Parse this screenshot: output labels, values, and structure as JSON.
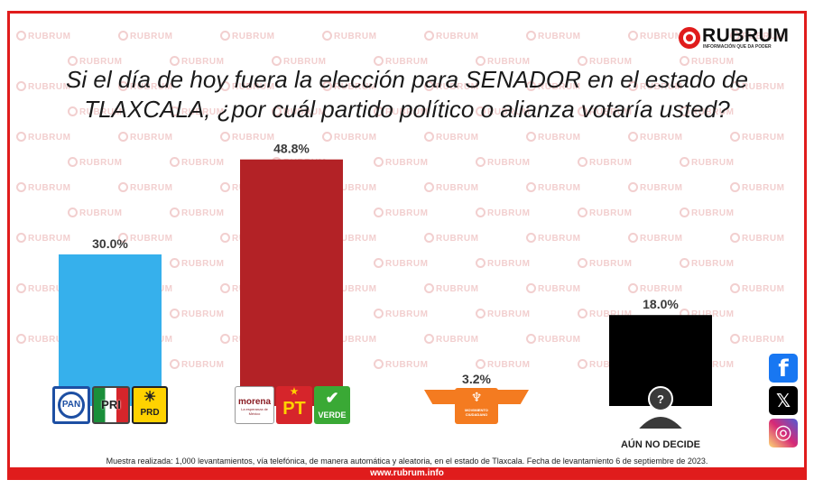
{
  "brand": {
    "name": "RUBRUM",
    "tagline": "INFORMACIÓN QUE DA PODER",
    "watermark": "RUBRUM",
    "url": "www.rubrum.info",
    "accent_color": "#e01c1c"
  },
  "question": "Si el día de hoy fuera la elección para SENADOR en el estado de TLAXCALA, ¿por cuál partido político o alianza votaría usted?",
  "chart_data": {
    "type": "bar",
    "categories": [
      "PAN-PRI-PRD",
      "MORENA-PT-VERDE",
      "MOVIMIENTO CIUDADANO",
      "AÚN NO DECIDE"
    ],
    "values": [
      30.0,
      48.8,
      3.2,
      18.0
    ],
    "value_labels": [
      "30.0%",
      "48.8%",
      "3.2%",
      "18.0%"
    ],
    "colors": [
      "#36b0ec",
      "#b32226",
      "#f47b20",
      "#000000"
    ],
    "category_text": [
      "",
      "",
      "",
      "AÚN NO DECIDE"
    ],
    "grid": false,
    "legend": "none"
  },
  "party_logos": {
    "pan": "PAN",
    "pri": "PRI",
    "prd": "PRD",
    "morena": "morena",
    "morena_sub": "La esperanza de México",
    "pt": "PT",
    "verde": "VERDE",
    "mc": "MOVIMIENTO CIUDADANO"
  },
  "undecided_icon": "person-question-icon",
  "footnote": "Muestra realizada: 1,000 levantamientos, vía telefónica, de manera automática y aleatoria, en el estado de Tlaxcala. Fecha de levantamiento 6 de septiembre de 2023.",
  "social": [
    {
      "name": "facebook-icon",
      "glyph": "f",
      "color": "#1877f2"
    },
    {
      "name": "x-icon",
      "glyph": "𝕏",
      "color": "#000000"
    },
    {
      "name": "instagram-icon",
      "glyph": "◎",
      "color": "#d62976"
    }
  ]
}
